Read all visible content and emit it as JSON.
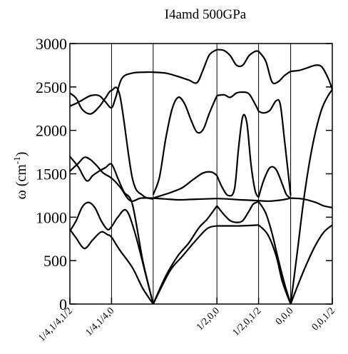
{
  "chart_data": {
    "type": "line",
    "title": "I4amd 500GPa",
    "xlabel": "",
    "ylabel": "ω (cm",
    "ylabel_sup": "-1",
    "ylabel_close": ")",
    "ylim": [
      0,
      3000
    ],
    "yticks": [
      0,
      500,
      1000,
      1500,
      2000,
      2500,
      3000
    ],
    "ytick_labels": [
      "0",
      "500",
      "1000",
      "1500",
      "2000",
      "2500",
      "3000"
    ],
    "xlim": [
      0,
      6.3
    ],
    "x_ticks": [
      {
        "label": "1/4,1/4,1/2",
        "x": 0
      },
      {
        "label": "1/4,1/4,0",
        "x": 1.0
      },
      {
        "label": "1/2,0,0",
        "x": 3.53
      },
      {
        "label": "1/2,0,1/2",
        "x": 4.53
      },
      {
        "label": "0,0,0",
        "x": 5.3
      },
      {
        "label": "0,0,1/2",
        "x": 6.3
      }
    ],
    "k_dividers": [
      1.0,
      2.0,
      3.53,
      4.53,
      5.3
    ],
    "grid": false,
    "series": [
      {
        "x": [
          0,
          0.15,
          0.35,
          0.55,
          0.75,
          0.9,
          1.0,
          1.2,
          1.5,
          1.75,
          2.0
        ],
        "y": [
          860,
          760,
          640,
          740,
          830,
          800,
          770,
          620,
          420,
          180,
          0
        ]
      },
      {
        "x": [
          0,
          0.15,
          0.3,
          0.45,
          0.6,
          0.75,
          0.9,
          1.0,
          1.15,
          1.35,
          1.55,
          1.8,
          2.0
        ],
        "y": [
          840,
          960,
          1120,
          1170,
          1110,
          960,
          860,
          890,
          1000,
          1080,
          840,
          380,
          0
        ]
      },
      {
        "x": [
          0,
          0.2,
          0.4,
          0.55,
          0.7,
          0.85,
          1.0,
          1.15,
          1.3,
          1.5,
          1.75,
          2.0
        ],
        "y": [
          1700,
          1580,
          1420,
          1480,
          1530,
          1570,
          1610,
          1450,
          1290,
          1150,
          500,
          0
        ]
      },
      {
        "x": [
          0,
          0.2,
          0.35,
          0.5,
          0.65,
          0.8,
          1.0,
          1.2,
          1.45,
          1.7,
          2.0
        ],
        "y": [
          1530,
          1620,
          1690,
          1660,
          1590,
          1510,
          1450,
          1350,
          1190,
          1220,
          1220
        ]
      },
      {
        "x": [
          0,
          0.15,
          0.3,
          0.5,
          0.7,
          0.85,
          1.0,
          1.2,
          1.5,
          1.75,
          2.0
        ],
        "y": [
          2430,
          2370,
          2240,
          2190,
          2270,
          2370,
          2460,
          2400,
          1450,
          1250,
          1210
        ]
      },
      {
        "x": [
          0,
          0.15,
          0.3,
          0.5,
          0.7,
          0.85,
          1.0,
          1.1,
          1.25,
          1.5,
          1.8,
          2.0
        ],
        "y": [
          2280,
          2310,
          2350,
          2400,
          2400,
          2330,
          2260,
          2380,
          2600,
          2660,
          2670,
          2670
        ]
      },
      {
        "x": [
          2.0,
          2.3,
          2.6,
          2.85,
          3.1,
          3.3,
          3.53
        ],
        "y": [
          0,
          320,
          560,
          700,
          880,
          980,
          1130
        ]
      },
      {
        "x": [
          2.0,
          2.4,
          2.7,
          3.0,
          3.3,
          3.53
        ],
        "y": [
          0,
          380,
          550,
          720,
          870,
          900
        ]
      },
      {
        "x": [
          2.0,
          2.2,
          2.45,
          2.7,
          2.95,
          3.2,
          3.4,
          3.53
        ],
        "y": [
          1220,
          1250,
          1290,
          1340,
          1430,
          1510,
          1520,
          1480
        ]
      },
      {
        "x": [
          2.0,
          2.3,
          2.6,
          2.9,
          3.2,
          3.53
        ],
        "y": [
          1220,
          1210,
          1200,
          1205,
          1210,
          1215
        ]
      },
      {
        "x": [
          2.0,
          2.15,
          2.3,
          2.45,
          2.6,
          2.75,
          2.9,
          3.05,
          3.2,
          3.35,
          3.53
        ],
        "y": [
          1260,
          1460,
          1900,
          2240,
          2380,
          2310,
          2130,
          1980,
          2010,
          2200,
          2400
        ]
      },
      {
        "x": [
          2.0,
          2.3,
          2.6,
          2.85,
          3.05,
          3.2,
          3.35,
          3.53
        ],
        "y": [
          2670,
          2660,
          2620,
          2580,
          2550,
          2700,
          2870,
          2930
        ]
      },
      {
        "x": [
          3.53,
          3.7,
          3.85,
          4.0,
          4.15,
          4.3,
          4.4,
          4.53
        ],
        "y": [
          1130,
          1030,
          960,
          940,
          960,
          1070,
          1150,
          1180
        ]
      },
      {
        "x": [
          3.53,
          3.8,
          4.1,
          4.35,
          4.53
        ],
        "y": [
          900,
          900,
          900,
          905,
          910
        ]
      },
      {
        "x": [
          3.53,
          3.65,
          3.8,
          3.95,
          4.05,
          4.15,
          4.25,
          4.35,
          4.45,
          4.53
        ],
        "y": [
          1480,
          1350,
          1250,
          1320,
          1800,
          2160,
          2080,
          1600,
          1300,
          1230
        ]
      },
      {
        "x": [
          3.53,
          3.8,
          4.1,
          4.35,
          4.53
        ],
        "y": [
          1215,
          1210,
          1200,
          1195,
          1190
        ]
      },
      {
        "x": [
          3.53,
          3.7,
          3.85,
          4.0,
          4.15,
          4.3,
          4.45,
          4.53
        ],
        "y": [
          2400,
          2410,
          2380,
          2430,
          2440,
          2420,
          2300,
          2220
        ]
      },
      {
        "x": [
          3.53,
          3.7,
          3.85,
          4.0,
          4.15,
          4.3,
          4.45,
          4.53
        ],
        "y": [
          2930,
          2920,
          2860,
          2750,
          2750,
          2860,
          2910,
          2910
        ]
      },
      {
        "x": [
          4.53,
          4.7,
          4.85,
          5.0,
          5.15,
          5.3
        ],
        "y": [
          1180,
          1050,
          820,
          520,
          240,
          0
        ]
      },
      {
        "x": [
          4.53,
          4.75,
          4.95,
          5.1,
          5.3
        ],
        "y": [
          910,
          800,
          560,
          260,
          0
        ]
      },
      {
        "x": [
          4.53,
          4.65,
          4.8,
          4.95,
          5.1,
          5.2,
          5.3
        ],
        "y": [
          1230,
          1420,
          1570,
          1550,
          1380,
          1260,
          1220
        ]
      },
      {
        "x": [
          4.53,
          4.8,
          5.1,
          5.3
        ],
        "y": [
          1190,
          1185,
          1200,
          1220
        ]
      },
      {
        "x": [
          4.53,
          4.65,
          4.8,
          4.95,
          5.05,
          5.15,
          5.3
        ],
        "y": [
          2220,
          2200,
          2230,
          2340,
          2300,
          1900,
          1250
        ]
      },
      {
        "x": [
          4.53,
          4.7,
          4.85,
          5.0,
          5.15,
          5.3
        ],
        "y": [
          2910,
          2800,
          2560,
          2560,
          2630,
          2680
        ]
      },
      {
        "x": [
          5.3,
          5.5,
          5.7,
          5.9,
          6.1,
          6.3
        ],
        "y": [
          0,
          250,
          480,
          680,
          830,
          910
        ]
      },
      {
        "x": [
          5.3,
          5.45,
          5.6,
          5.75,
          5.9,
          6.05,
          6.2,
          6.3
        ],
        "y": [
          0,
          560,
          1150,
          1630,
          1990,
          2250,
          2400,
          2470
        ]
      },
      {
        "x": [
          5.3,
          5.6,
          5.9,
          6.1,
          6.3
        ],
        "y": [
          1220,
          1210,
          1170,
          1130,
          1110
        ]
      },
      {
        "x": [
          5.3,
          5.5,
          5.7,
          5.9,
          6.05,
          6.2,
          6.3
        ],
        "y": [
          2680,
          2690,
          2720,
          2750,
          2730,
          2600,
          2470
        ]
      }
    ]
  }
}
